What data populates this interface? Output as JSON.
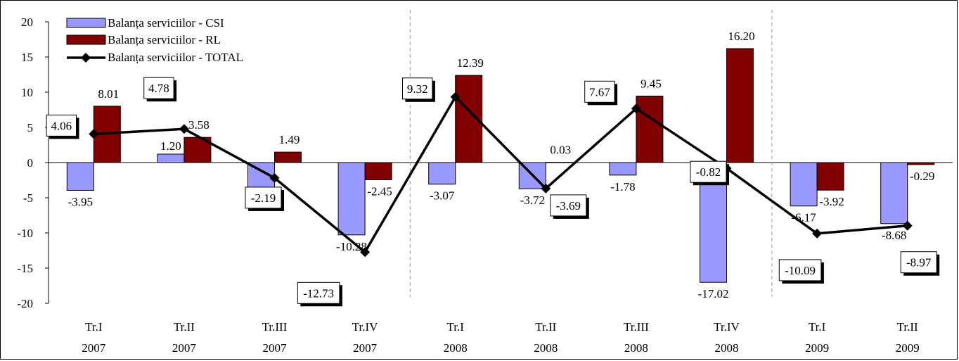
{
  "chart_data": {
    "type": "bar",
    "categories": [
      [
        "Tr.I",
        "2007"
      ],
      [
        "Tr.II",
        "2007"
      ],
      [
        "Tr.III",
        "2007"
      ],
      [
        "Tr.IV",
        "2007"
      ],
      [
        "Tr.I",
        "2008"
      ],
      [
        "Tr.II",
        "2008"
      ],
      [
        "Tr.III",
        "2008"
      ],
      [
        "Tr.IV",
        "2008"
      ],
      [
        "Tr.I",
        "2009"
      ],
      [
        "Tr.II",
        "2009"
      ]
    ],
    "ylim": [
      -20,
      20
    ],
    "yticks": [
      "20",
      "15",
      "10",
      "5",
      "0",
      "-5",
      "-10",
      "-15",
      "-20"
    ],
    "ytick_values": [
      20,
      15,
      10,
      5,
      0,
      -5,
      -10,
      -15,
      -20
    ],
    "grid": false,
    "year_separators_after": [
      3,
      7
    ],
    "legend_position": "top-left",
    "series": [
      {
        "name": "Balanța serviciilor - CSI",
        "kind": "bar",
        "color": "#9999ff",
        "values": [
          -3.95,
          1.2,
          -3.68,
          -10.28,
          -3.07,
          -3.72,
          -1.78,
          -17.02,
          -6.17,
          -8.68
        ],
        "labels": [
          "-3.95",
          "1.20",
          "-3.68",
          "-10.28",
          "-3.07",
          "-3.72",
          "-1.78",
          "-17.02",
          "-6.17",
          "-8.68"
        ]
      },
      {
        "name": "Balanța serviciilor - RL",
        "kind": "bar",
        "color": "#800000",
        "values": [
          8.01,
          3.58,
          1.49,
          -2.45,
          12.39,
          0.03,
          9.45,
          16.2,
          -3.92,
          -0.29
        ],
        "labels": [
          "8.01",
          "3.58",
          "1.49",
          "-2.45",
          "12.39",
          "0.03",
          "9.45",
          "16.20",
          "-3.92",
          "-0.29"
        ]
      },
      {
        "name": "Balanța serviciilor - TOTAL",
        "kind": "line",
        "color": "#000000",
        "values": [
          4.06,
          4.78,
          -2.19,
          -12.73,
          9.32,
          -3.69,
          7.67,
          -0.82,
          -10.09,
          -8.97
        ],
        "labels": [
          "4.06",
          "4.78",
          "-2.19",
          "-12.73",
          "9.32",
          "-3.69",
          "7.67",
          "-0.82",
          "-10.09",
          "-8.97"
        ]
      }
    ]
  }
}
